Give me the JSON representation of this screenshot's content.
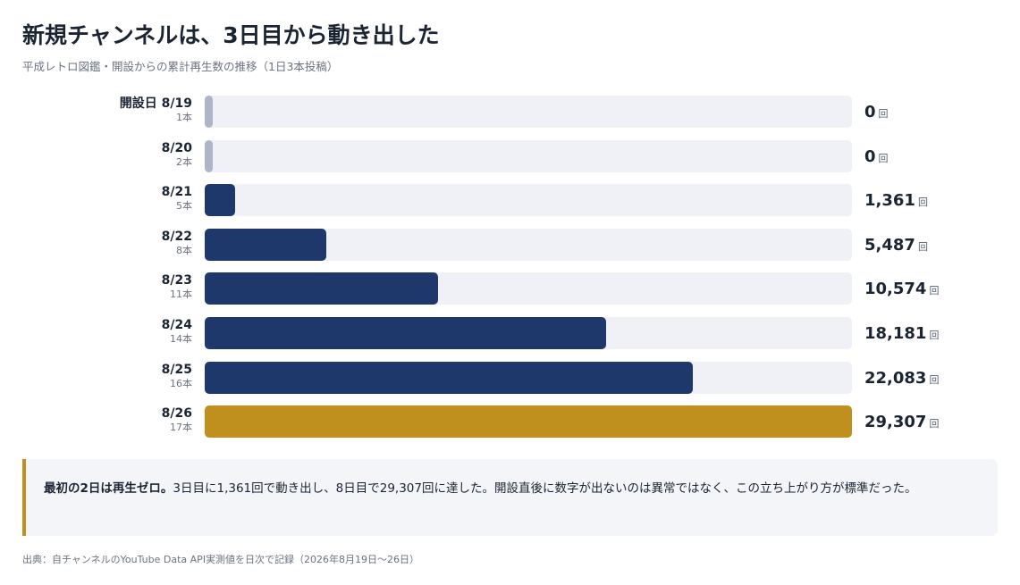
{
  "header": {
    "title": "新規チャンネルは、3日目から動き出した",
    "subtitle": "平成レトロ図鑑・開設からの累計再生数の推移（1日3本投稿）"
  },
  "colors": {
    "bar_default": "#1f386b",
    "bar_zero": "#adb5c8",
    "bar_highlight": "#c0901e",
    "track": "#eff1f6"
  },
  "chart_data": {
    "type": "bar",
    "orientation": "horizontal",
    "title": "新規チャンネルは、3日目から動き出した",
    "subtitle": "平成レトロ図鑑・開設からの累計再生数の推移（1日3本投稿）",
    "value_unit": "回",
    "xlim": [
      0,
      29307
    ],
    "grid": false,
    "categories": [
      "開設日 8/19",
      "8/20",
      "8/21",
      "8/22",
      "8/23",
      "8/24",
      "8/25",
      "8/26"
    ],
    "sublabels": [
      "1本",
      "2本",
      "5本",
      "8本",
      "11本",
      "14本",
      "16本",
      "17本"
    ],
    "values": [
      0,
      0,
      1361,
      5487,
      10574,
      18181,
      22083,
      29307
    ],
    "value_labels": [
      "0",
      "0",
      "1,361",
      "5,487",
      "10,574",
      "18,181",
      "22,083",
      "29,307"
    ],
    "highlight_index": 7
  },
  "callout": {
    "bold_text": "最初の2日は再生ゼロ。",
    "text": "3日目に1,361回で動き出し、8日目で29,307回に達した。開設直後に数字が出ないのは異常ではなく、この立ち上がり方が標準だった。"
  },
  "source": "出典：自チャンネルのYouTube Data API実測値を日次で記録（2026年8月19日〜26日）"
}
